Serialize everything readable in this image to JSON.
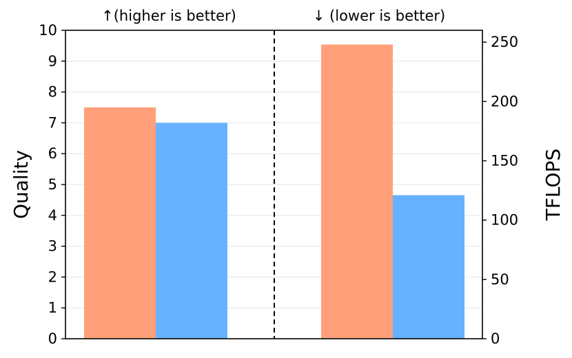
{
  "chart_data": {
    "type": "bar",
    "panels": [
      {
        "name": "quality",
        "annotation": "↑(higher is better)",
        "axis": "left",
        "values": [
          7.5,
          7.0
        ],
        "colors": [
          "#FFA07A",
          "#66B2FF"
        ]
      },
      {
        "name": "tflops",
        "annotation": "↓  (lower is better)",
        "axis": "right",
        "values": [
          248,
          121
        ],
        "colors": [
          "#FFA07A",
          "#66B2FF"
        ]
      }
    ],
    "left_axis": {
      "label": "Quality",
      "ylim": [
        0,
        10
      ],
      "ticks": [
        "0",
        "1",
        "2",
        "3",
        "4",
        "5",
        "6",
        "7",
        "8",
        "9",
        "10"
      ]
    },
    "right_axis": {
      "label": "TFLOPS",
      "ylim": [
        0,
        260
      ],
      "ticks": [
        "0",
        "50",
        "100",
        "150",
        "200",
        "250"
      ]
    },
    "grid": "horizontal light",
    "divider": "dashed vertical line between panels"
  }
}
